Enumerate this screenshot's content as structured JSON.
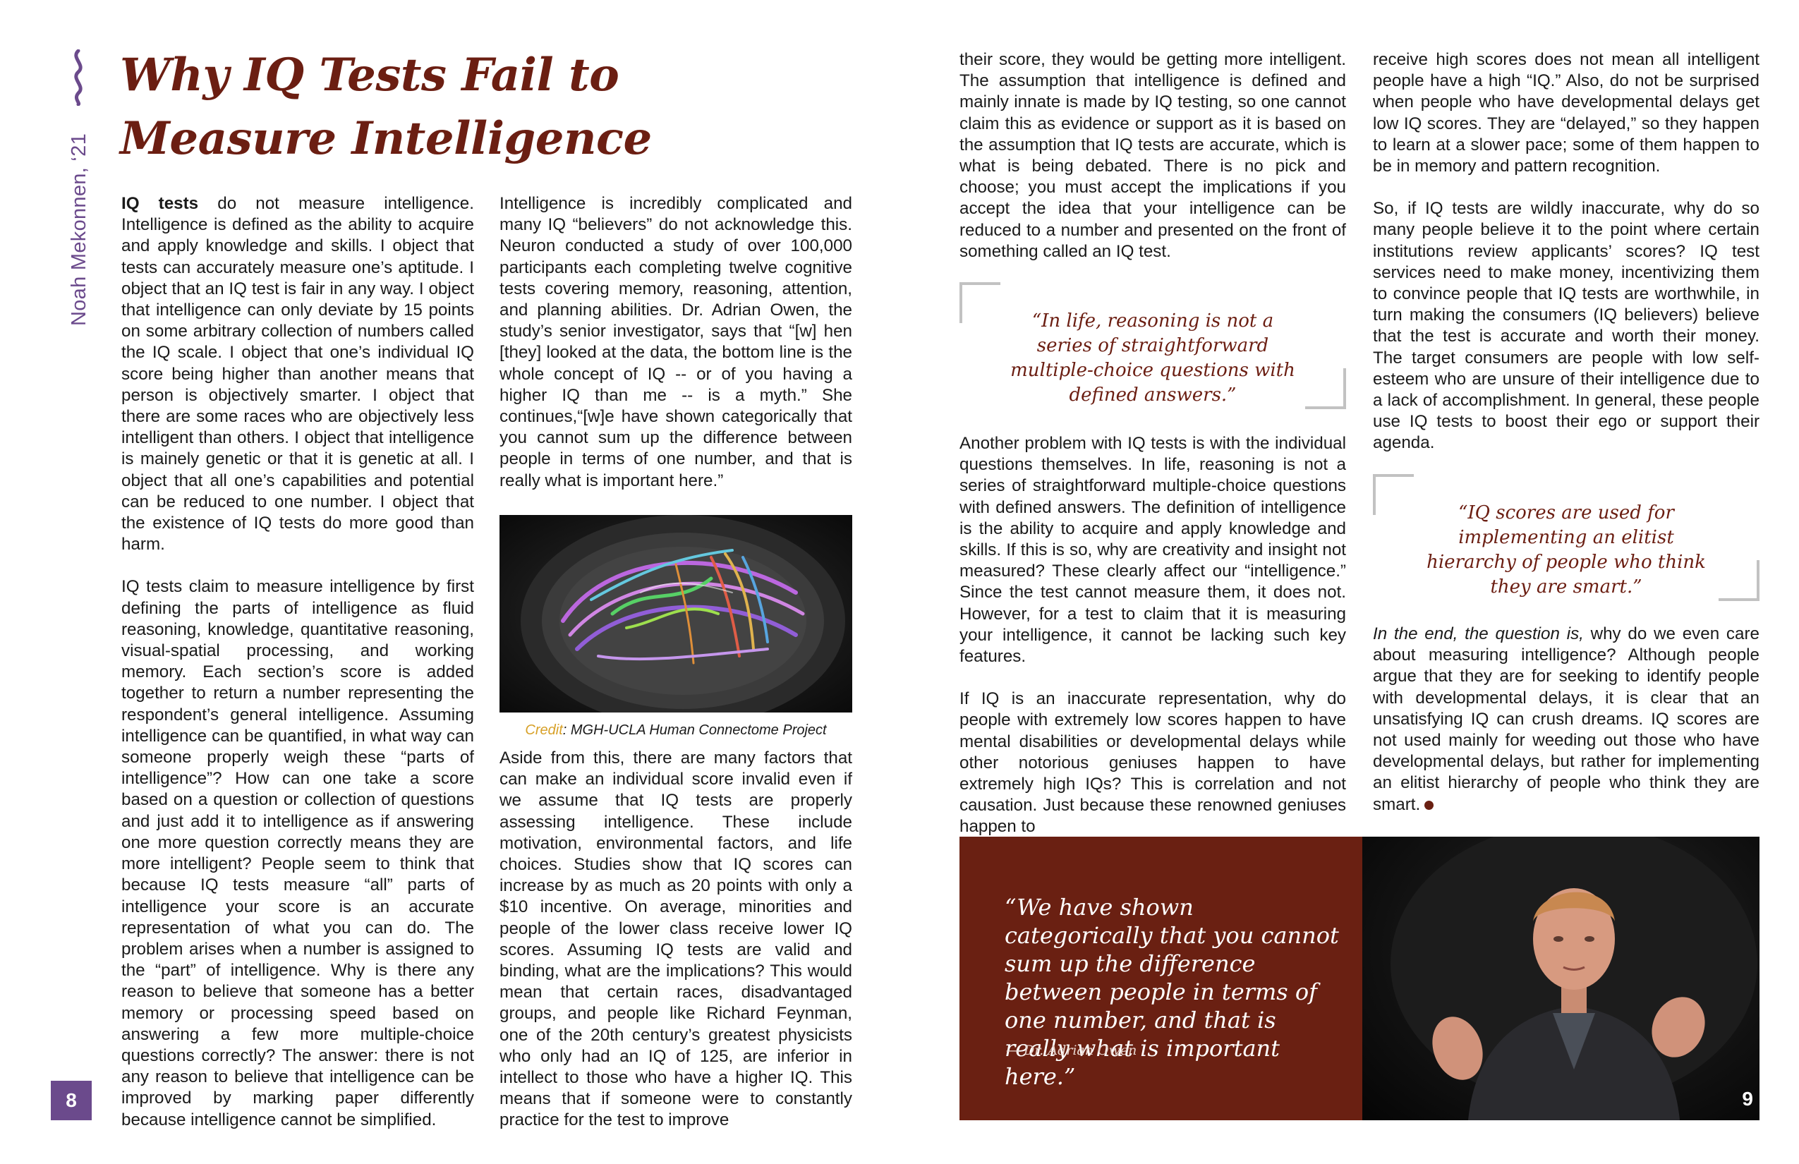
{
  "article": {
    "author": "Noah Mekonnen, ‘21",
    "title": "Why IQ Tests Fail to Measure Intelligence",
    "columns": {
      "col1": {
        "p1_lead": "IQ tests",
        "p1": " do not measure intelligence. Intelligence is defined as the ability to acquire and apply knowledge and skills. I object that tests can accurately measure one’s aptitude. I object that an IQ test is fair in any way. I object that intelligence can only deviate by 15 points on some arbitrary collection of numbers called the IQ scale. I object that one’s individual IQ score being higher than another means that person is objectively smarter. I object that there are some races who are objectively less intelligent than others. I object that intelligence is mainely genetic or that it is genetic at all. I object that all one’s capabilities and potential can be reduced to one number. I object that the existence of IQ tests do more good than harm.",
        "p2": "IQ tests claim to measure intelligence by first defining the parts of intelligence as fluid reasoning, knowledge, quantitative reasoning, visual-spatial processing, and working memory. Each section’s score is added together to return a number representing the respondent’s general intelligence. Assuming intelligence can be quantified, in what way can someone properly weigh these “parts of intelligence”? How can one take a score based on a question or collection of questions and just add it to intelligence as if answering one more question correctly means they are more intelligent? People seem to think that because IQ tests measure “all” parts of intelligence your score is an accurate representation of what you can do. The problem arises when a number is assigned to the “part” of intelligence. Why is there any reason to believe that someone has a better memory or processing speed based on answering a few more multiple-choice questions correctly? The answer: there is not any reason to believe that intelligence can be improved by marking paper differently because intelligence cannot be simplified."
      },
      "col2a": {
        "p1": "Intelligence is incredibly complicated and many IQ “believers” do not acknowledge this. Neuron conducted a study of over 100,000 participants each completing twelve cognitive tests covering memory, reasoning, attention, and planning abilities. Dr. Adrian Owen, the study’s senior investigator, says that “[w] hen [they] looked at the data, the bottom line is the whole concept of IQ -- or of you having a higher IQ than me -- is a myth.” She continues,“[w]e have shown categorically that you cannot sum up the difference between people in terms of one number, and that is really what is important here.”"
      },
      "figure": {
        "credit_label": "Credit",
        "credit_text": ": MGH-UCLA Human Connectome Project"
      },
      "col2b": {
        "p1": "Aside from this, there are many factors that can make an individual score invalid even if we assume that IQ tests are properly assessing intelligence. These include motivation, environmental factors, and life choices. Studies show that IQ scores can increase by as much as 20 points with only a $10 incentive. On average, minorities and people of the lower class receive lower IQ scores. Assuming IQ tests are valid and binding, what are the implications? This would mean that certain races, disadvantaged groups, and people like Richard Feynman, one of the 20th century’s greatest physicists who only had an IQ of 125, are inferior in intellect to those who have a higher IQ. This means that if someone were to constantly practice for the test to improve"
      },
      "col3a": {
        "p1": "their score, they would be getting more intelligent. The assumption that intelligence is defined and mainly innate is made by IQ testing, so one cannot claim this as evidence or support as it is based on the assumption that IQ tests are accurate, which is what is being debated. There is no pick and choose; you must accept the implications if you accept the idea that your intelligence can be reduced to a number and presented on the front of something called an IQ test."
      },
      "pullquote1": "“In life, reasoning is not a series of straightforward multiple-choice questions with defined answers.”",
      "col3b": {
        "p1": "Another problem with IQ tests is with the individual questions themselves. In life, reasoning is not a series of straightforward multiple-choice questions with defined answers. The definition of intelligence is the ability to acquire and apply knowledge and skills. If this is so, why are creativity and insight not measured? These clearly affect our “intelligence.” Since the test cannot measure them, it does not. However, for a test to claim that it is measuring your intelligence, it cannot be lacking such key features.",
        "p2": "If IQ is an inaccurate representation, why do people with extremely low scores happen to have mental disabilities or developmental delays while other notorious geniuses happen to have extremely high IQs? This is correlation and not causation. Just because these renowned geniuses happen to"
      },
      "col4a": {
        "p1": "receive high scores does not mean all intelligent people have a high “IQ.” Also, do not be surprised when people who have developmental delays get low IQ scores. They are “delayed,” so they happen to learn at a slower pace; some of them happen to be in memory and pattern recognition.",
        "p2": "So, if IQ tests are wildly inaccurate, why do so many people believe it to the point where certain institutions review applicants’ scores? IQ test services need to make money, incentivizing them to convince people that IQ tests are worthwhile, in turn making the consumers (IQ believers) believe that the test is accurate and worth their money. The target consumers are people with low self-esteem who are unsure of their intelligence due to a lack of accomplishment. In general, these people use IQ tests to boost their ego or support their agenda."
      },
      "pullquote2": "“IQ scores are used for implementing an elitist hierarchy of people who think they are smart.”",
      "col4b": {
        "p1_lead": "In the end, the question is,",
        "p1": " why do we even care about measuring intelligence? Although people argue that they are for seeking to identify people with developmental delays, it is clear that an unsatisfying IQ can crush dreams. IQ scores are not used mainly for weeding out those who have developmental delays, but rather for implementing an elitist hierarchy of people who think they are smart."
      }
    },
    "quote_box": {
      "text": "“We have shown categorically that you cannot sum up the difference between people in terms of one number, and that is really what is important here.”",
      "attribution": "— Dr. Adrian Owen"
    },
    "page_numbers": {
      "left": "8",
      "right": "9"
    },
    "colors": {
      "accent_purple": "#6b4a8c",
      "title_maroon": "#6b1e12",
      "quote_box_bg": "#6a2012",
      "credit_gold": "#d7a027"
    }
  }
}
